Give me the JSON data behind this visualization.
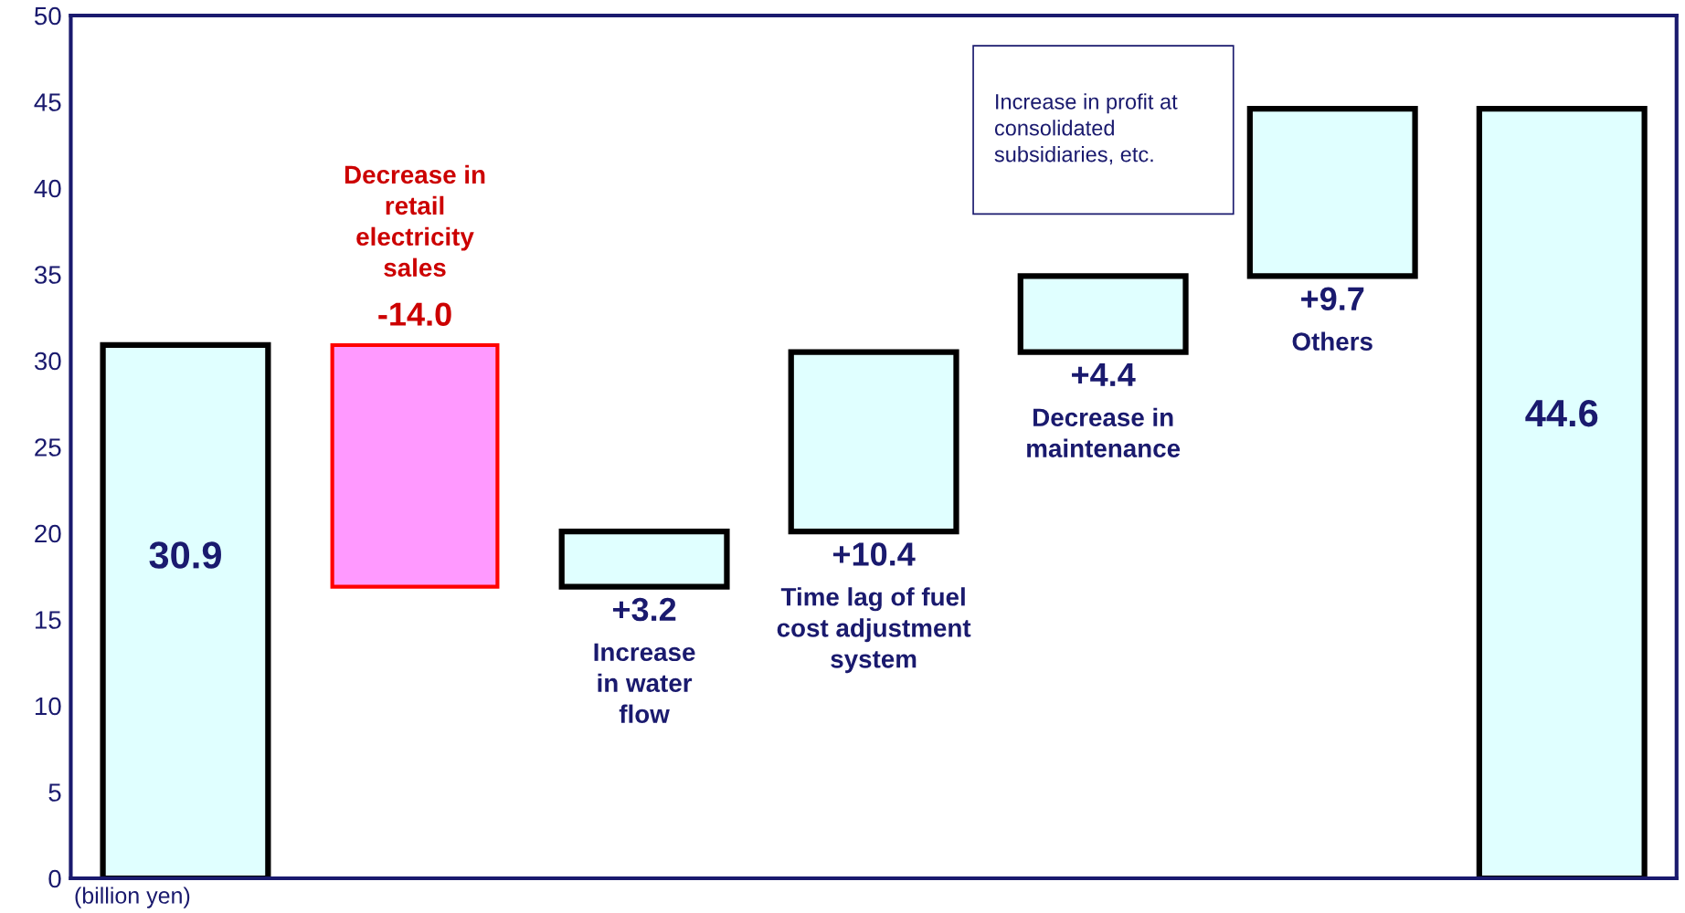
{
  "chart_data": {
    "type": "bar",
    "categories": [
      null,
      "Decrease in\nretail\nelectricity\nsales",
      "Increase\nin water\nflow",
      "Time lag of fuel\ncost adjustment\nsystem",
      "Decrease in\nmaintenance",
      "Others",
      null
    ],
    "values": [
      30.9,
      -14.0,
      3.2,
      10.4,
      4.4,
      9.7,
      44.6
    ],
    "base": [
      0,
      30.9,
      16.9,
      20.1,
      30.5,
      34.9,
      0
    ],
    "colors": [
      "#e0ffff",
      "#ff99ff",
      "#e0ffff",
      "#e0ffff",
      "#e0ffff",
      "#e0ffff",
      "#e0ffff"
    ],
    "value_labels": [
      "30.9",
      "-14.0",
      "+3.2",
      "+10.4",
      "+4.4",
      "+9.7",
      "44.6"
    ],
    "ylim": [
      0,
      50
    ],
    "yticks": [
      0,
      5,
      10,
      15,
      20,
      25,
      30,
      35,
      40,
      45,
      50
    ],
    "grid": false,
    "tick_labels": "y",
    "annotations": [
      "Increase in profit at\nconsolidated\nsubsidiaries, etc.",
      "(billion yen)"
    ]
  }
}
